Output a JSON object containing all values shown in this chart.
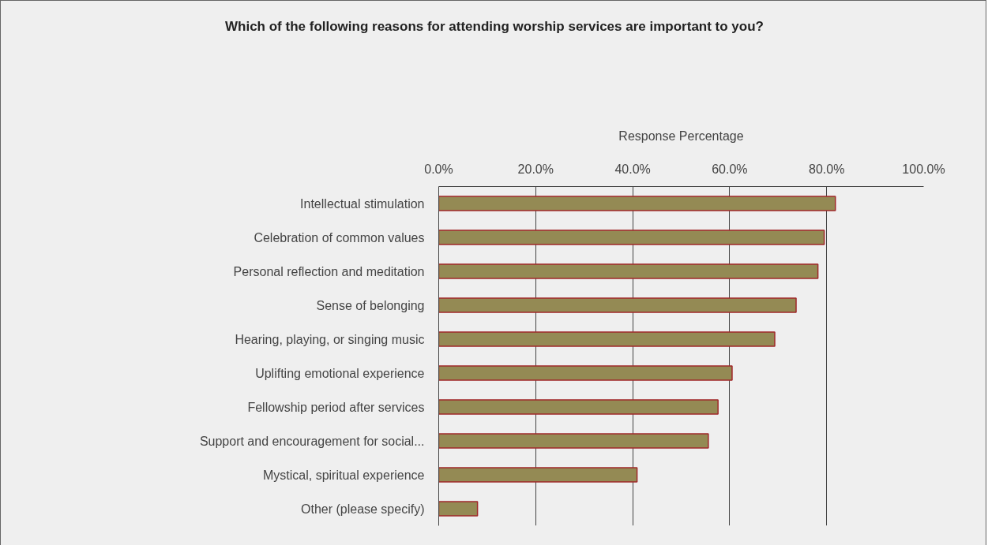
{
  "chart_data": {
    "type": "bar",
    "orientation": "horizontal",
    "title": "Which of the following reasons for attending worship services are important to you?",
    "xlabel": "Response Percentage",
    "categories": [
      "Intellectual stimulation",
      "Celebration of common values",
      "Personal reflection and meditation",
      "Sense of belonging",
      "Hearing, playing, or singing music",
      "Uplifting emotional experience",
      "Fellowship period after services",
      "Support and encouragement for social...",
      "Mystical, spiritual experience",
      "Other (please specify)"
    ],
    "values": [
      81.8,
      79.5,
      78.2,
      73.7,
      69.3,
      60.5,
      57.6,
      55.6,
      40.9,
      8.0
    ],
    "color": "#948a54",
    "xlim": [
      0,
      100
    ],
    "xticks": [
      {
        "value": 0,
        "label": "0.0%"
      },
      {
        "value": 20,
        "label": "20.0%"
      },
      {
        "value": 40,
        "label": "40.0%"
      },
      {
        "value": 60,
        "label": "60.0%"
      },
      {
        "value": 80,
        "label": "80.0%"
      },
      {
        "value": 100,
        "label": "100.0%"
      }
    ],
    "grid": "x"
  }
}
